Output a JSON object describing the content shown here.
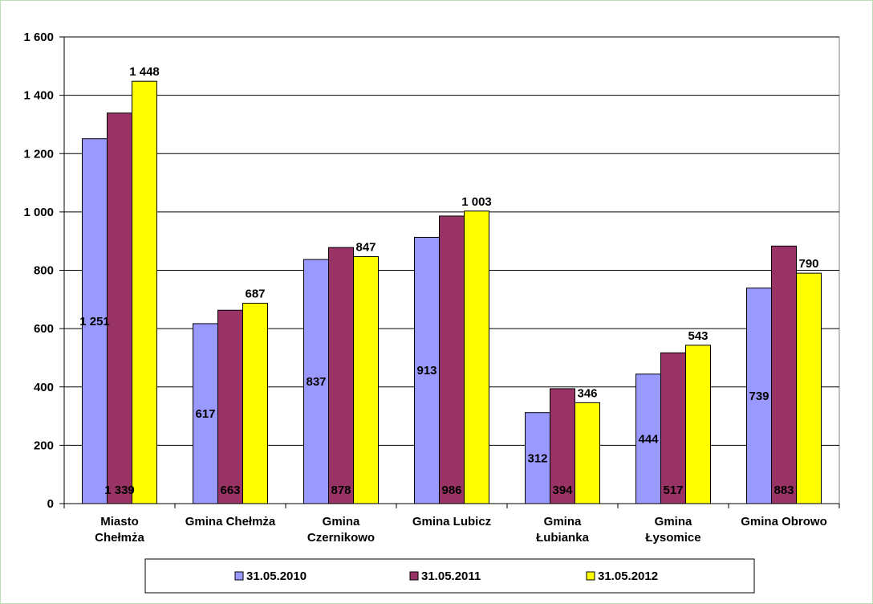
{
  "chart_data": {
    "type": "bar",
    "categories": [
      [
        "Miasto",
        "Chełmża"
      ],
      [
        "Gmina Chełmża"
      ],
      [
        "Gmina",
        "Czernikowo"
      ],
      [
        "Gmina Lubicz"
      ],
      [
        "Gmina",
        "Łubianka"
      ],
      [
        "Gmina",
        "Łysomice"
      ],
      [
        "Gmina Obrowo"
      ]
    ],
    "series": [
      {
        "name": "31.05.2010",
        "color": "#9999ff",
        "values": [
          1251,
          617,
          837,
          913,
          312,
          444,
          739
        ],
        "labels": [
          "1 251",
          "617",
          "837",
          "913",
          "312",
          "444",
          "739"
        ]
      },
      {
        "name": "31.05.2011",
        "color": "#993366",
        "values": [
          1339,
          663,
          878,
          986,
          394,
          517,
          883
        ],
        "labels": [
          "1 339",
          "663",
          "878",
          "986",
          "394",
          "517",
          "883"
        ]
      },
      {
        "name": "31.05.2012",
        "color": "#ffff00",
        "values": [
          1448,
          687,
          847,
          1003,
          346,
          543,
          790
        ],
        "labels": [
          "1 448",
          "687",
          "847",
          "1 003",
          "346",
          "543",
          "790"
        ]
      }
    ],
    "y_ticks": [
      {
        "value": 0,
        "label": "0"
      },
      {
        "value": 200,
        "label": "200"
      },
      {
        "value": 400,
        "label": "400"
      },
      {
        "value": 600,
        "label": "600"
      },
      {
        "value": 800,
        "label": "800"
      },
      {
        "value": 1000,
        "label": "1 000"
      },
      {
        "value": 1200,
        "label": "1 200"
      },
      {
        "value": 1400,
        "label": "1 400"
      },
      {
        "value": 1600,
        "label": "1 600"
      }
    ],
    "ylim": [
      0,
      1600
    ],
    "grid": true,
    "legend": "bottom"
  }
}
